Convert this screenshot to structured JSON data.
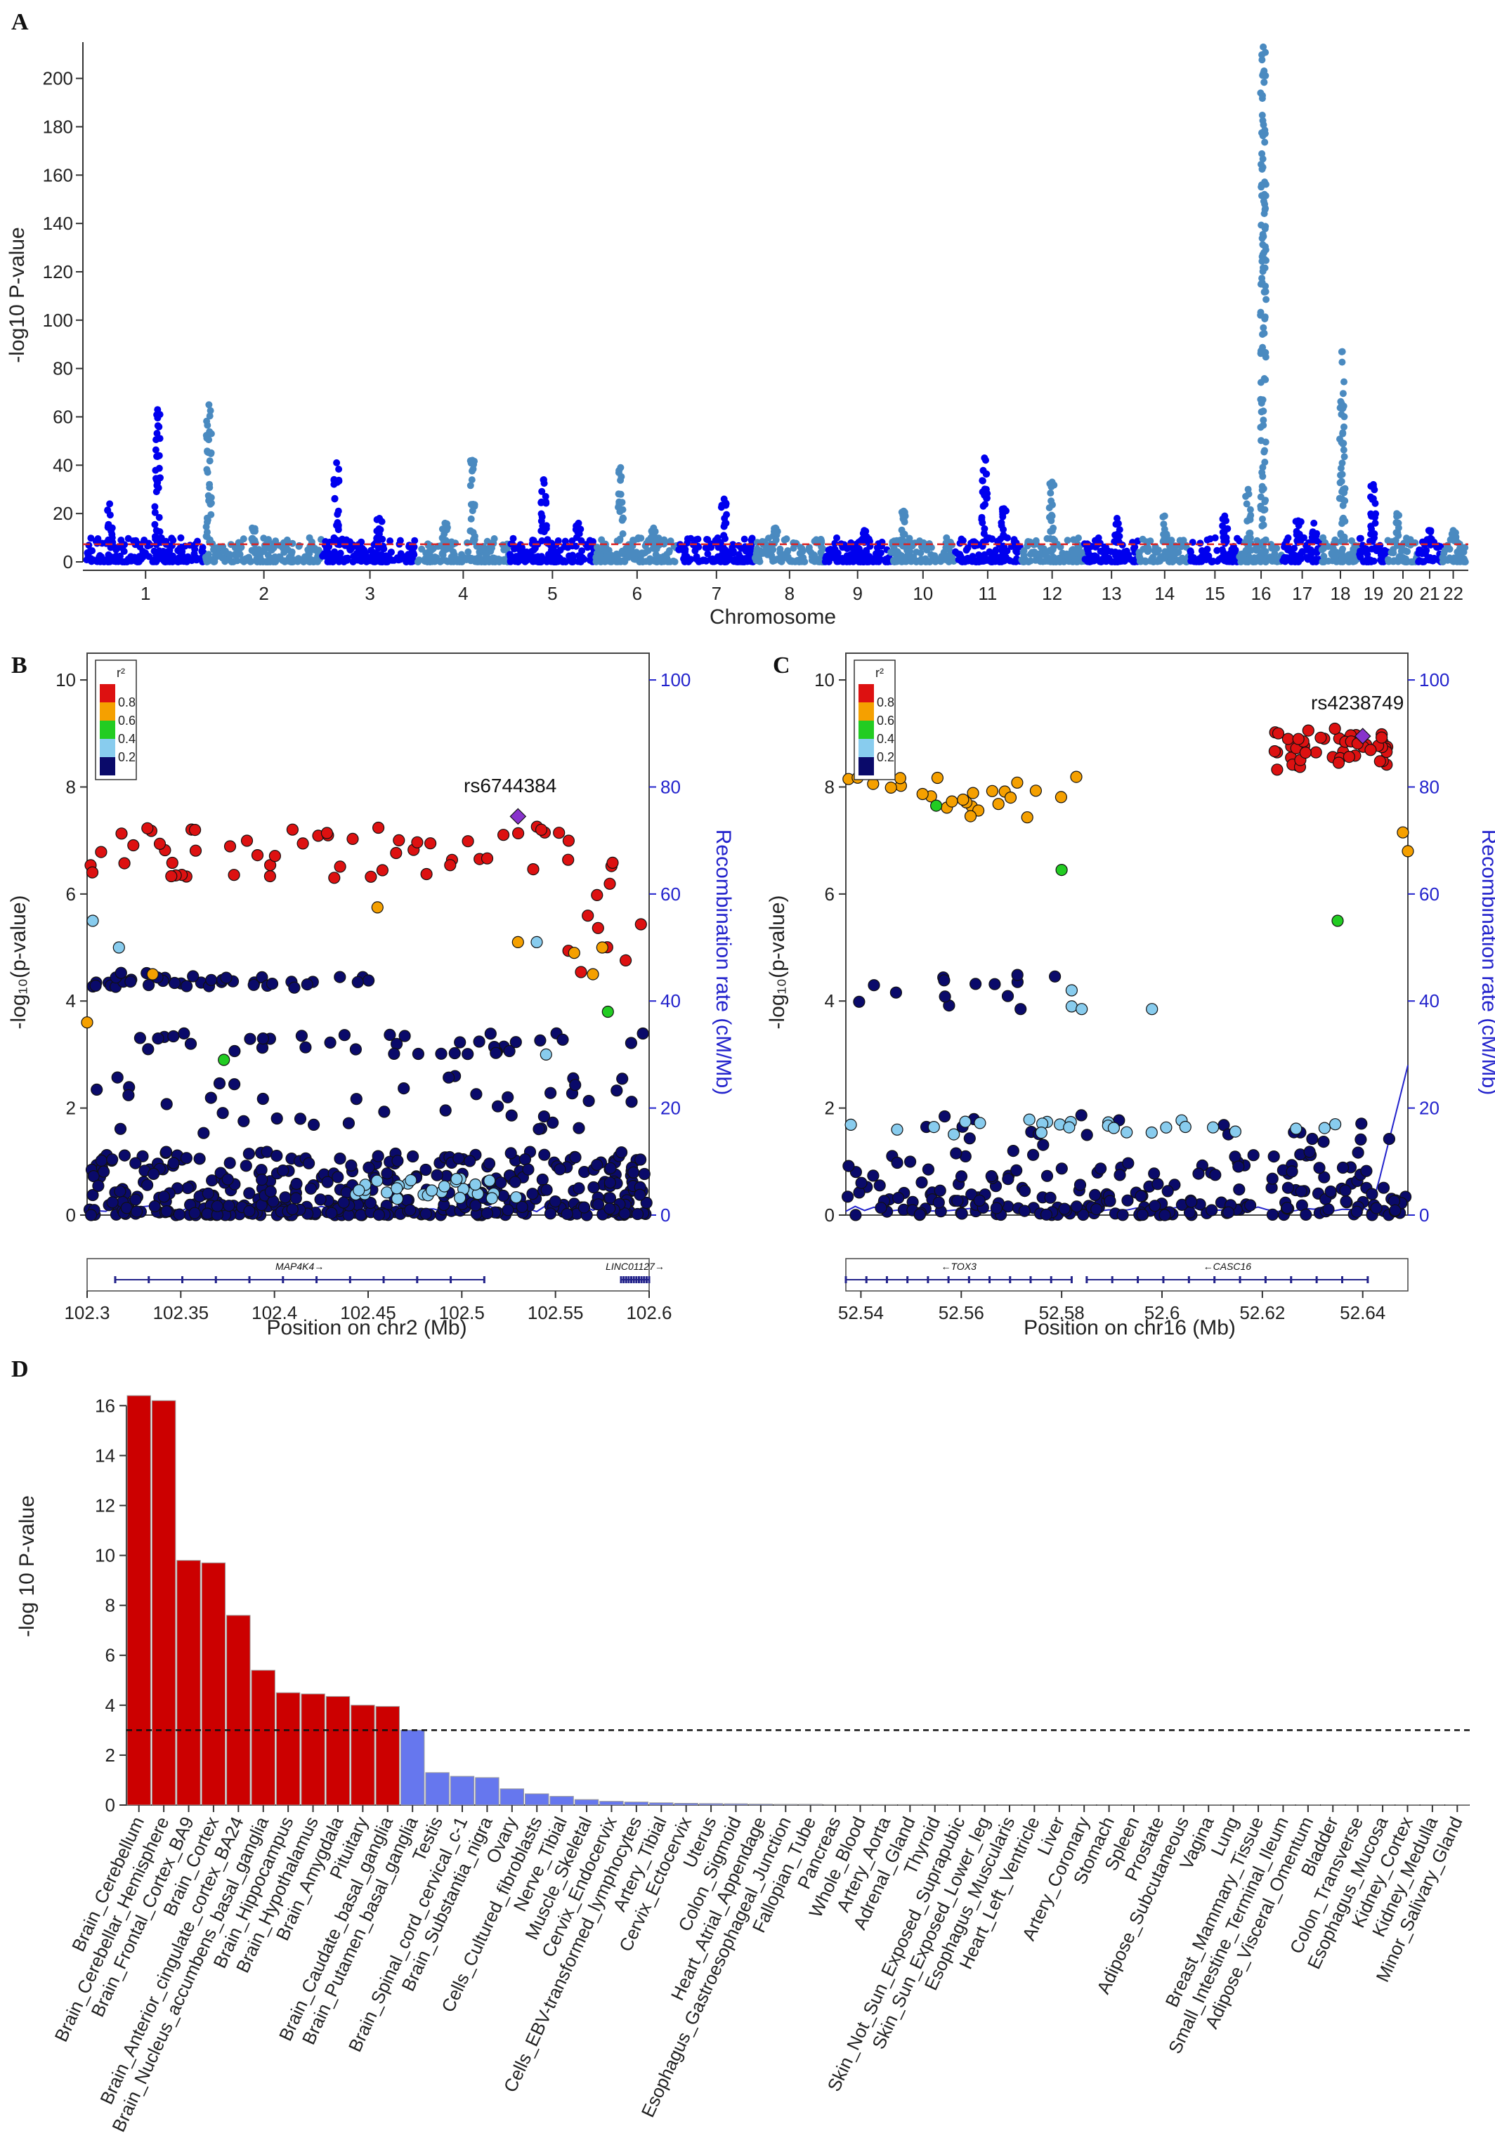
{
  "panels": {
    "A": "A",
    "B": "B",
    "C": "C",
    "D": "D"
  },
  "chart_data": [
    {
      "id": "A",
      "type": "scatter",
      "subtype": "manhattan",
      "ylabel": "-log10 P-value",
      "xlabel": "Chromosome",
      "ylim": [
        0,
        215
      ],
      "yticks": [
        0,
        20,
        40,
        60,
        80,
        100,
        120,
        140,
        160,
        180,
        200
      ],
      "threshold": 7.3,
      "threshold_color": "#dd2222",
      "colors": [
        "#0000ee",
        "#4a8ac0"
      ],
      "chromosomes": [
        {
          "label": "1",
          "size": 249,
          "peaks": [
            [
              0.6,
              63
            ],
            [
              0.2,
              24
            ]
          ]
        },
        {
          "label": "2",
          "size": 243,
          "peaks": [
            [
              0.03,
              65
            ],
            [
              0.4,
              14
            ]
          ]
        },
        {
          "label": "3",
          "size": 198,
          "peaks": [
            [
              0.15,
              41
            ],
            [
              0.6,
              18
            ]
          ]
        },
        {
          "label": "4",
          "size": 190,
          "peaks": [
            [
              0.6,
              42
            ],
            [
              0.3,
              16
            ]
          ]
        },
        {
          "label": "5",
          "size": 181,
          "peaks": [
            [
              0.4,
              34
            ],
            [
              0.8,
              16
            ]
          ]
        },
        {
          "label": "6",
          "size": 171,
          "peaks": [
            [
              0.3,
              39
            ],
            [
              0.7,
              14
            ]
          ]
        },
        {
          "label": "7",
          "size": 159,
          "peaks": [
            [
              0.6,
              26
            ]
          ]
        },
        {
          "label": "8",
          "size": 145,
          "peaks": [
            [
              0.3,
              14
            ]
          ]
        },
        {
          "label": "9",
          "size": 138,
          "peaks": [
            [
              0.6,
              13
            ]
          ]
        },
        {
          "label": "10",
          "size": 134,
          "peaks": [
            [
              0.2,
              21
            ]
          ]
        },
        {
          "label": "11",
          "size": 135,
          "peaks": [
            [
              0.45,
              43
            ],
            [
              0.75,
              22
            ]
          ]
        },
        {
          "label": "12",
          "size": 133,
          "peaks": [
            [
              0.5,
              33
            ]
          ]
        },
        {
          "label": "13",
          "size": 114,
          "peaks": [
            [
              0.6,
              18
            ]
          ]
        },
        {
          "label": "14",
          "size": 107,
          "peaks": [
            [
              0.5,
              19
            ]
          ]
        },
        {
          "label": "15",
          "size": 102,
          "peaks": [
            [
              0.7,
              19
            ]
          ]
        },
        {
          "label": "16",
          "size": 90,
          "peaks": [
            [
              0.55,
              213
            ],
            [
              0.2,
              30
            ]
          ]
        },
        {
          "label": "17",
          "size": 81,
          "peaks": [
            [
              0.4,
              17
            ],
            [
              0.8,
              16
            ]
          ]
        },
        {
          "label": "18",
          "size": 78,
          "peaks": [
            [
              0.55,
              87
            ]
          ]
        },
        {
          "label": "19",
          "size": 59,
          "peaks": [
            [
              0.5,
              32
            ]
          ]
        },
        {
          "label": "20",
          "size": 64,
          "peaks": [
            [
              0.3,
              20
            ]
          ]
        },
        {
          "label": "21",
          "size": 47,
          "peaks": [
            [
              0.5,
              13
            ]
          ]
        },
        {
          "label": "22",
          "size": 51,
          "peaks": [
            [
              0.5,
              13
            ]
          ]
        }
      ]
    },
    {
      "id": "B",
      "type": "scatter",
      "subtype": "regional",
      "ylabel": "-log₁₀(p-value)",
      "y2label": "Recombination rate (cM/Mb)",
      "xlabel": "Position on chr2 (Mb)",
      "xlim": [
        102.3,
        102.6
      ],
      "xticks": [
        102.3,
        102.35,
        102.4,
        102.45,
        102.5,
        102.55,
        102.6
      ],
      "ylim": [
        0,
        10.5
      ],
      "yticks": [
        0,
        2,
        4,
        6,
        8,
        10
      ],
      "y2ticks": [
        0,
        20,
        40,
        60,
        80,
        100
      ],
      "lead_snp": {
        "name": "rs6744384",
        "x": 102.53,
        "y": 7.45
      },
      "genes": [
        {
          "name": "MAP4K4",
          "label": "MAP4K4→",
          "start": 102.315,
          "end": 102.512
        },
        {
          "name": "LINC01127",
          "label": "LINC01127→",
          "start": 102.585,
          "end": 102.6
        }
      ],
      "high_ld_band": {
        "x": [
          102.3,
          102.56
        ],
        "y": [
          6.3,
          7.3
        ]
      },
      "high_ld_tail": {
        "x": [
          102.555,
          102.6
        ],
        "y": [
          4.4,
          6.7
        ]
      },
      "mid_band": {
        "x": [
          102.3,
          102.46
        ],
        "y": [
          4.25,
          4.55
        ]
      }
    },
    {
      "id": "C",
      "type": "scatter",
      "subtype": "regional",
      "ylabel": "-log₁₀(p-value)",
      "y2label": "Recombination rate (cM/Mb)",
      "xlabel": "Position on chr16 (Mb)",
      "xlim": [
        52.537,
        52.649
      ],
      "xticks": [
        52.54,
        52.56,
        52.58,
        52.6,
        52.62,
        52.64
      ],
      "ylim": [
        0,
        10.5
      ],
      "yticks": [
        0,
        2,
        4,
        6,
        8,
        10
      ],
      "y2ticks": [
        0,
        20,
        40,
        60,
        80,
        100
      ],
      "lead_snp": {
        "name": "rs4238749",
        "x": 52.64,
        "y": 8.95
      },
      "genes": [
        {
          "name": "TOX3",
          "label": "←TOX3",
          "start": 52.537,
          "end": 52.582
        },
        {
          "name": "CASC16",
          "label": "←CASC16",
          "start": 52.585,
          "end": 52.641
        }
      ],
      "orange_band": {
        "x": [
          52.537,
          52.583
        ],
        "y": [
          7.4,
          8.2
        ]
      },
      "red_band": {
        "x": [
          52.622,
          52.645
        ],
        "y": [
          8.3,
          9.1
        ]
      }
    },
    {
      "id": "D",
      "type": "bar",
      "ylabel": "-log 10 P-value",
      "ylim": [
        0,
        16.5
      ],
      "yticks": [
        0,
        2,
        4,
        6,
        8,
        10,
        12,
        14,
        16
      ],
      "threshold": 3.0,
      "colors": {
        "significant": "#cc0000",
        "other": "#6677ee"
      },
      "categories": [
        "Brain_Cerebellum",
        "Brain_Cerebellar_Hemisphere",
        "Brain_Frontal_Cortex_BA9",
        "Brain_Cortex",
        "Brain_Anterior_cingulate_cortex_BA24",
        "Brain_Nucleus_accumbens_basal_ganglia",
        "Brain_Hippocampus",
        "Brain_Hypothalamus",
        "Brain_Amygdala",
        "Pituitary",
        "Brain_Caudate_basal_ganglia",
        "Brain_Putamen_basal_ganglia",
        "Testis",
        "Brain_Spinal_cord_cervical_c-1",
        "Brain_Substantia_nigra",
        "Ovary",
        "Cells_Cultured_fibroblasts",
        "Nerve_Tibial",
        "Muscle_Skeletal",
        "Cervix_Endocervix",
        "Cells_EBV-transformed_lymphocytes",
        "Artery_Tibial",
        "Cervix_Ectocervix",
        "Uterus",
        "Colon_Sigmoid",
        "Heart_Atrial_Appendage",
        "Esophagus_Gastroesophageal_Junction",
        "Fallopian_Tube",
        "Pancreas",
        "Whole_Blood",
        "Artery_Aorta",
        "Adrenal_Gland",
        "Thyroid",
        "Skin_Not_Sun_Exposed_Suprapubic",
        "Skin_Sun_Exposed_Lower_leg",
        "Esophagus_Muscularis",
        "Heart_Left_Ventricle",
        "Liver",
        "Artery_Coronary",
        "Stomach",
        "Spleen",
        "Prostate",
        "Adipose_Subcutaneous",
        "Vagina",
        "Lung",
        "Breast_Mammary_Tissue",
        "Small_Intestine_Terminal_Ileum",
        "Adipose_Visceral_Omentum",
        "Bladder",
        "Colon_Transverse",
        "Esophagus_Mucosa",
        "Kidney_Cortex",
        "Kidney_Medulla",
        "Minor_Salivary_Gland"
      ],
      "values": [
        16.4,
        16.2,
        9.8,
        9.7,
        7.6,
        5.4,
        4.5,
        4.45,
        4.35,
        4.0,
        3.95,
        3.0,
        1.3,
        1.15,
        1.1,
        0.65,
        0.45,
        0.35,
        0.22,
        0.15,
        0.12,
        0.09,
        0.07,
        0.06,
        0.05,
        0.04,
        0.03,
        0.03,
        0.02,
        0.02,
        0.02,
        0.02,
        0.02,
        0.01,
        0.01,
        0.01,
        0.01,
        0.01,
        0.01,
        0.01,
        0.01,
        0.01,
        0.01,
        0.01,
        0.01,
        0.01,
        0.01,
        0.01,
        0.01,
        0.01,
        0.01,
        0.01,
        0.01,
        0.01
      ]
    }
  ],
  "ld_legend": {
    "title": "r²",
    "labels": [
      "0.8",
      "0.6",
      "0.4",
      "0.2"
    ],
    "colors": [
      "#dd1111",
      "#f5a000",
      "#22cc22",
      "#88ccee",
      "#0a0a6a"
    ]
  }
}
